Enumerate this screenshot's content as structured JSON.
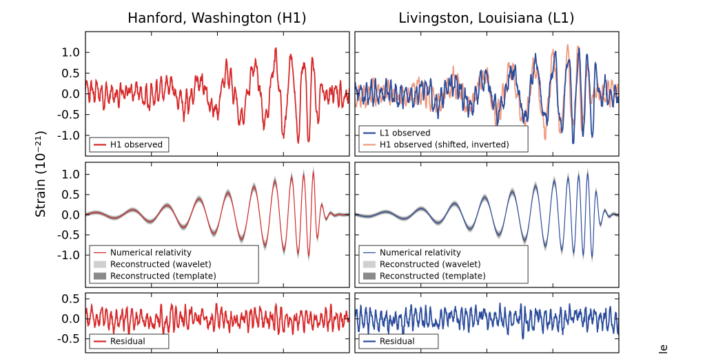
{
  "colors": {
    "h1": "#d62728",
    "l1": "#2a4b9b",
    "h1_shifted": "#f0997d",
    "wavelet": "#d0d0d0",
    "template": "#8a8a8a"
  },
  "edge_text": "le",
  "chart_data": {
    "type": "line",
    "ylabel": "Strain (10⁻²¹)",
    "columns": [
      {
        "title": "Hanford, Washington (H1)"
      },
      {
        "title": "Livingston, Louisiana (L1)"
      }
    ],
    "rows": [
      {
        "ylim": [
          -1.5,
          1.5
        ],
        "yticks": [
          1.0,
          0.5,
          0.0,
          -0.5,
          -1.0
        ],
        "tick_labels": [
          "1.0",
          "0.5",
          "0.0",
          "-0.5",
          "-1.0"
        ]
      },
      {
        "ylim": [
          -1.8,
          1.3
        ],
        "yticks": [
          1.0,
          0.5,
          0.0,
          -0.5,
          -1.0
        ],
        "tick_labels": [
          "1.0",
          "0.5",
          "0.0",
          "-0.5",
          "-1.0"
        ]
      },
      {
        "ylim": [
          -0.85,
          0.65
        ],
        "yticks": [
          0.5,
          0.0,
          -0.5
        ],
        "tick_labels": [
          "0.5",
          "0.0",
          "-0.5"
        ]
      }
    ],
    "xlim": [
      0.25,
      0.45
    ],
    "xticks": [
      0.3,
      0.35,
      0.4,
      0.45
    ],
    "panels": [
      {
        "id": "h1-observed",
        "row": 0,
        "col": 0,
        "legend": [
          "H1 observed"
        ]
      },
      {
        "id": "l1-observed",
        "row": 0,
        "col": 1,
        "legend": [
          "L1 observed",
          "H1 observed (shifted, inverted)"
        ]
      },
      {
        "id": "h1-reconstructed",
        "row": 1,
        "col": 0,
        "legend": [
          "Numerical relativity",
          "Reconstructed (wavelet)",
          "Reconstructed (template)"
        ]
      },
      {
        "id": "l1-reconstructed",
        "row": 1,
        "col": 1,
        "legend": [
          "Numerical relativity",
          "Reconstructed (wavelet)",
          "Reconstructed (template)"
        ]
      },
      {
        "id": "h1-residual",
        "row": 2,
        "col": 0,
        "legend": [
          "Residual"
        ]
      },
      {
        "id": "l1-residual",
        "row": 2,
        "col": 1,
        "legend": [
          "Residual"
        ]
      }
    ],
    "chirp_model": {
      "t_merger": 0.4235,
      "peak_amplitude": 1.05,
      "envelope_points": [
        [
          0.25,
          0.04
        ],
        [
          0.28,
          0.1
        ],
        [
          0.31,
          0.22
        ],
        [
          0.34,
          0.42
        ],
        [
          0.37,
          0.62
        ],
        [
          0.39,
          0.8
        ],
        [
          0.41,
          0.95
        ],
        [
          0.4235,
          1.05
        ],
        [
          0.45,
          0.0
        ]
      ],
      "frequency_points_hz": [
        [
          0.25,
          34
        ],
        [
          0.32,
          40
        ],
        [
          0.37,
          50
        ],
        [
          0.4,
          75
        ],
        [
          0.4235,
          150
        ]
      ],
      "ringdown_tau_s": 0.004,
      "l1_time_shift_s": 0.007
    },
    "noise_rms": {
      "observed": 0.2,
      "residual": 0.2
    }
  }
}
